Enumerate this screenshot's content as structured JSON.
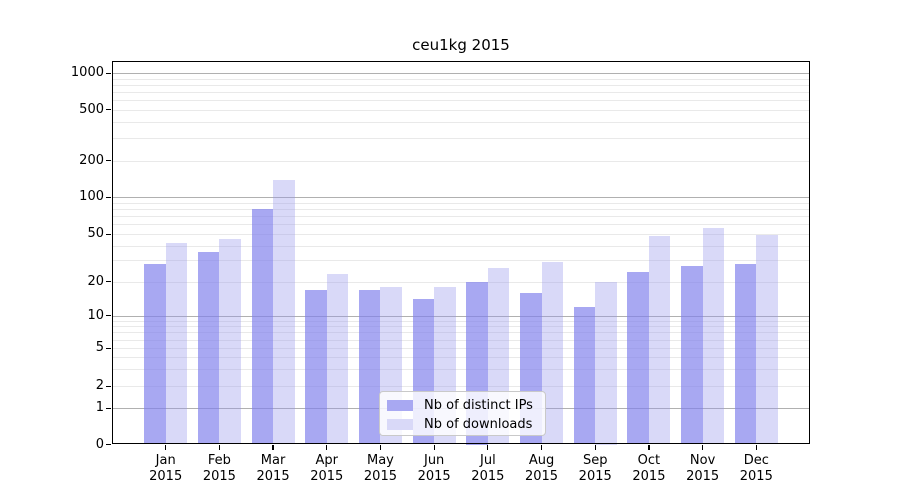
{
  "chart_data": {
    "type": "bar",
    "title": "ceu1kg 2015",
    "x_axis": {
      "months": [
        "Jan",
        "Feb",
        "Mar",
        "Apr",
        "May",
        "Jun",
        "Jul",
        "Aug",
        "Sep",
        "Oct",
        "Nov",
        "Dec"
      ],
      "year": "2015"
    },
    "y_axis": {
      "scale": "symlog",
      "ticks": [
        0,
        1,
        2,
        5,
        10,
        20,
        50,
        100,
        200,
        500,
        1000
      ],
      "range": [
        0,
        1300
      ]
    },
    "series": [
      {
        "name": "Nb of distinct IPs",
        "color": "#a8a8f2",
        "values": [
          28,
          35,
          80,
          17,
          17,
          14,
          20,
          16,
          12,
          24,
          27,
          28
        ]
      },
      {
        "name": "Nb of downloads",
        "color": "#d9d9f8",
        "values": [
          42,
          45,
          140,
          23,
          18,
          18,
          26,
          29,
          20,
          48,
          56,
          49
        ]
      }
    ],
    "legend": {
      "position": "lower-center"
    },
    "grid": {
      "visible": true,
      "major_color": "#b0b0b0",
      "minor_color": "#e9e9e9"
    }
  }
}
